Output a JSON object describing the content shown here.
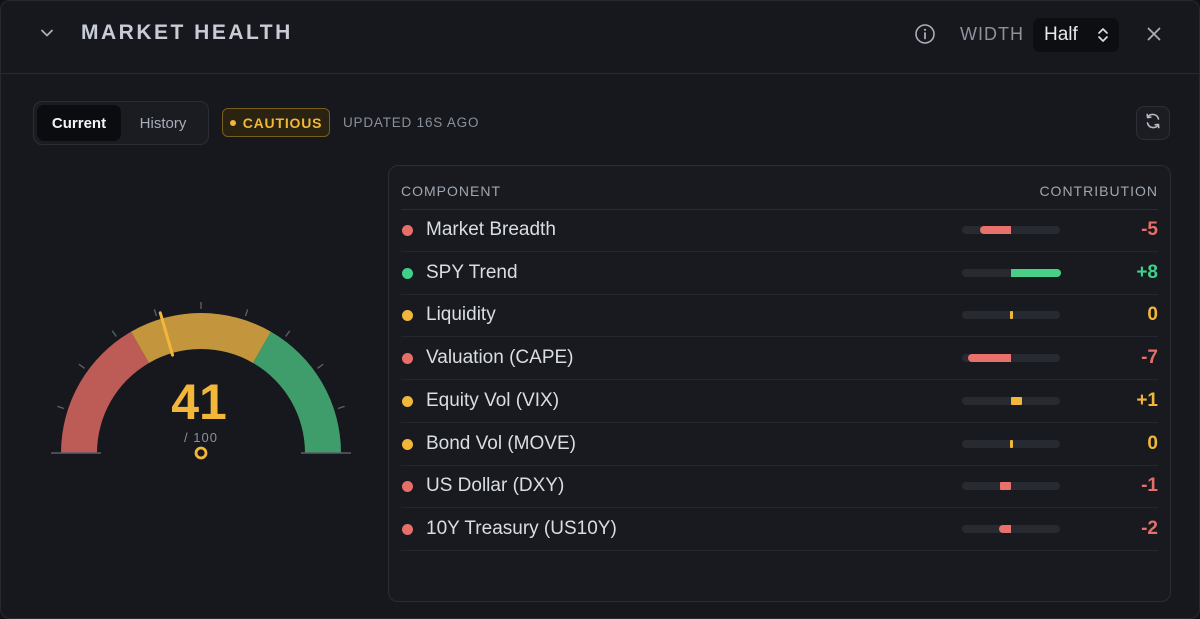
{
  "header": {
    "title": "MARKET HEALTH",
    "width_label": "WIDTH",
    "width_value": "Half",
    "icons": {
      "collapse": "chevron-down-icon",
      "info": "info-icon",
      "select": "updown-chevron-icon",
      "close": "close-icon"
    }
  },
  "toolbar": {
    "tabs": [
      {
        "label": "Current",
        "active": true
      },
      {
        "label": "History",
        "active": false
      }
    ],
    "status_badge": "CAUTIOUS",
    "updated": "UPDATED 16S AGO",
    "refresh_icon": "refresh-icon"
  },
  "gauge": {
    "score": "41",
    "max_label": "/ 100",
    "value_fraction": 0.41,
    "zones": [
      {
        "name": "risk",
        "from": 0,
        "to": 0.3333,
        "color": "#bd5b56"
      },
      {
        "name": "caution",
        "from": 0.3333,
        "to": 0.6667,
        "color": "#c3953d"
      },
      {
        "name": "healthy",
        "from": 0.6667,
        "to": 1,
        "color": "#3f9d6c"
      }
    ],
    "pointer_color": "#f2b63b"
  },
  "table": {
    "col_component": "COMPONENT",
    "col_contribution": "CONTRIBUTION",
    "rows": [
      {
        "name": "Market Breadth",
        "value": "-5",
        "score": -5,
        "status": "negative"
      },
      {
        "name": "SPY Trend",
        "value": "+8",
        "score": 8,
        "status": "positive"
      },
      {
        "name": "Liquidity",
        "value": "0",
        "score": 0,
        "status": "neutral"
      },
      {
        "name": "Valuation (CAPE)",
        "value": "-7",
        "score": -7,
        "status": "negative"
      },
      {
        "name": "Equity Vol (VIX)",
        "value": "+1",
        "score": 1,
        "status": "neutral"
      },
      {
        "name": "Bond Vol (MOVE)",
        "value": "0",
        "score": 0,
        "status": "neutral"
      },
      {
        "name": "US Dollar (DXY)",
        "value": "-1",
        "score": -1,
        "status": "negative"
      },
      {
        "name": "10Y Treasury (US10Y)",
        "value": "-2",
        "score": -2,
        "status": "negative"
      }
    ]
  },
  "colors": {
    "negative": "#e76f6a",
    "positive": "#3fd08a",
    "neutral": "#f2b63b",
    "bar_negative": "#e8716c",
    "bar_positive": "#46cf85",
    "bar_neutral": "#f2b63b"
  }
}
